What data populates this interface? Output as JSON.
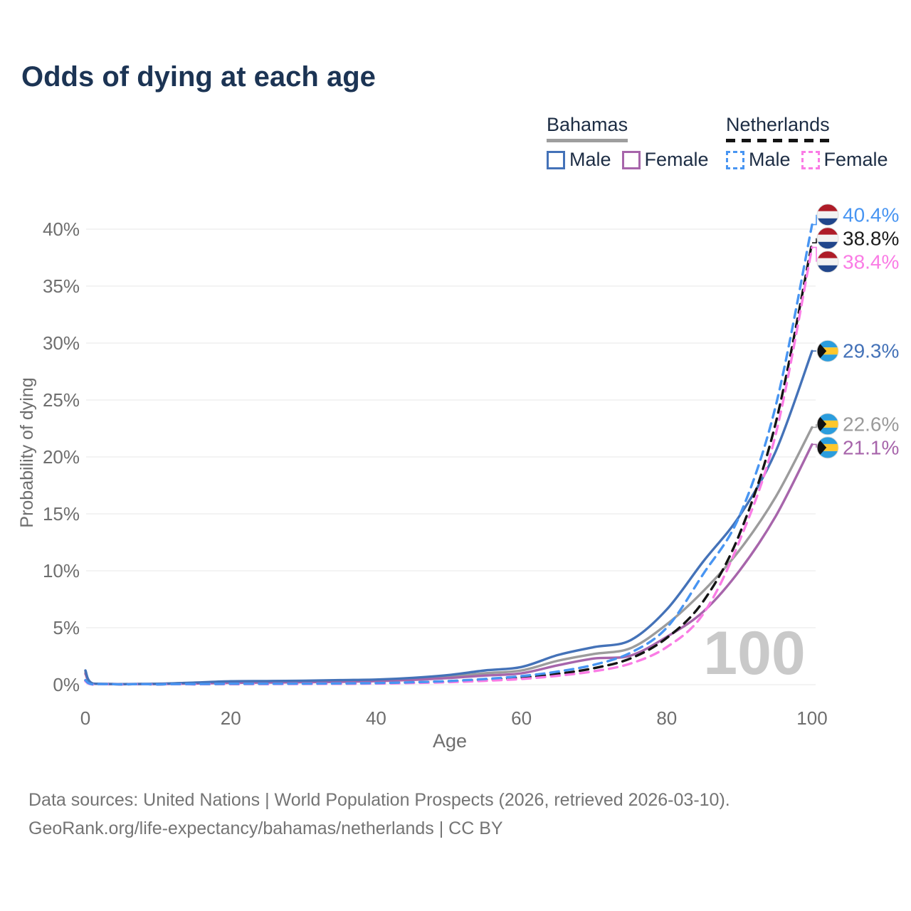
{
  "title": "Odds of dying at each age",
  "legend": {
    "groups": [
      {
        "label": "Bahamas",
        "line_style": "solid",
        "underline_color": "#9e9e9e",
        "items": [
          {
            "label": "Male",
            "color": "#4472b8"
          },
          {
            "label": "Female",
            "color": "#a765ab"
          }
        ]
      },
      {
        "label": "Netherlands",
        "line_style": "dashed",
        "underline_color": "#141414",
        "items": [
          {
            "label": "Male",
            "color": "#4895f2"
          },
          {
            "label": "Female",
            "color": "#fa7ce5"
          }
        ]
      }
    ]
  },
  "chart_data": {
    "type": "line",
    "title": "Odds of dying at each age",
    "xlabel": "Age",
    "ylabel": "Probability of dying",
    "xlim": [
      0,
      100
    ],
    "ylim": [
      0,
      40
    ],
    "grid": "horizontal",
    "x_ticks": [
      0,
      20,
      40,
      60,
      80,
      100
    ],
    "y_ticks": [
      "0%",
      "5%",
      "10%",
      "15%",
      "20%",
      "25%",
      "30%",
      "35%",
      "40%"
    ],
    "y_tick_values": [
      0,
      5,
      10,
      15,
      20,
      25,
      30,
      35,
      40
    ],
    "watermark": "100",
    "x": [
      0,
      1,
      5,
      10,
      15,
      20,
      25,
      30,
      35,
      40,
      45,
      50,
      55,
      60,
      65,
      70,
      75,
      80,
      85,
      90,
      95,
      100
    ],
    "series": [
      {
        "name": "Bahamas total",
        "country": "Bahamas",
        "group": "total",
        "color": "#9c9c9c",
        "label_color": "#9a9a9a",
        "dashed": false,
        "flag": "bahamas",
        "end_label": "22.6%",
        "values": [
          1.1,
          0.09,
          0.05,
          0.06,
          0.14,
          0.23,
          0.25,
          0.28,
          0.32,
          0.38,
          0.5,
          0.7,
          1.0,
          1.25,
          2.1,
          2.7,
          3.2,
          5.3,
          8.2,
          11.8,
          16.5,
          22.6
        ]
      },
      {
        "name": "Bahamas Female",
        "country": "Bahamas",
        "group": "Female",
        "color": "#a765ab",
        "label_color": "#a765ab",
        "dashed": false,
        "flag": "bahamas",
        "end_label": "21.1%",
        "values": [
          0.95,
          0.08,
          0.04,
          0.05,
          0.1,
          0.16,
          0.18,
          0.21,
          0.25,
          0.31,
          0.42,
          0.58,
          0.8,
          1.0,
          1.7,
          2.3,
          2.55,
          4.2,
          6.4,
          10.0,
          14.8,
          21.1
        ]
      },
      {
        "name": "Bahamas Male",
        "country": "Bahamas",
        "group": "Male",
        "color": "#4472b8",
        "label_color": "#4472b8",
        "dashed": false,
        "flag": "bahamas",
        "end_label": "29.3%",
        "values": [
          1.25,
          0.1,
          0.05,
          0.08,
          0.18,
          0.3,
          0.32,
          0.35,
          0.4,
          0.45,
          0.6,
          0.85,
          1.25,
          1.55,
          2.6,
          3.3,
          3.9,
          6.6,
          10.8,
          14.8,
          20.5,
          29.3
        ]
      },
      {
        "name": "Netherlands total",
        "country": "Netherlands",
        "group": "total",
        "color": "#141414",
        "label_color": "#1c1c1c",
        "dashed": true,
        "flag": "netherlands",
        "end_label": "38.8%",
        "values": [
          0.35,
          0.03,
          0.02,
          0.02,
          0.04,
          0.06,
          0.07,
          0.08,
          0.09,
          0.12,
          0.18,
          0.27,
          0.42,
          0.62,
          0.95,
          1.45,
          2.3,
          4.1,
          7.3,
          13.2,
          23.0,
          38.8
        ]
      },
      {
        "name": "Netherlands Female",
        "country": "Netherlands",
        "group": "Female",
        "color": "#fa7ce5",
        "label_color": "#fa7ce5",
        "dashed": true,
        "flag": "netherlands",
        "end_label": "38.4%",
        "values": [
          0.3,
          0.02,
          0.02,
          0.02,
          0.03,
          0.05,
          0.05,
          0.06,
          0.08,
          0.1,
          0.15,
          0.22,
          0.34,
          0.5,
          0.78,
          1.18,
          1.85,
          3.3,
          6.2,
          12.6,
          22.0,
          38.4
        ]
      },
      {
        "name": "Netherlands Male",
        "country": "Netherlands",
        "group": "Male",
        "color": "#4895f2",
        "label_color": "#4895f2",
        "dashed": true,
        "flag": "netherlands",
        "end_label": "40.4%",
        "values": [
          0.4,
          0.03,
          0.02,
          0.02,
          0.05,
          0.08,
          0.08,
          0.09,
          0.11,
          0.14,
          0.21,
          0.32,
          0.5,
          0.75,
          1.15,
          1.75,
          2.8,
          5.0,
          9.7,
          14.8,
          24.5,
          40.4
        ]
      }
    ],
    "flag_colors": {
      "netherlands": {
        "red": "#AE1C28",
        "white": "#f2f2f2",
        "blue": "#21468B"
      },
      "bahamas": {
        "aqua": "#2b9ddd",
        "gold": "#ffc72c",
        "black": "#111111"
      }
    }
  },
  "footer": {
    "line1": "Data sources: United Nations | World Population Prospects (2026, retrieved 2026-03-10).",
    "line2": "GeoRank.org/life-expectancy/bahamas/netherlands | CC BY"
  }
}
